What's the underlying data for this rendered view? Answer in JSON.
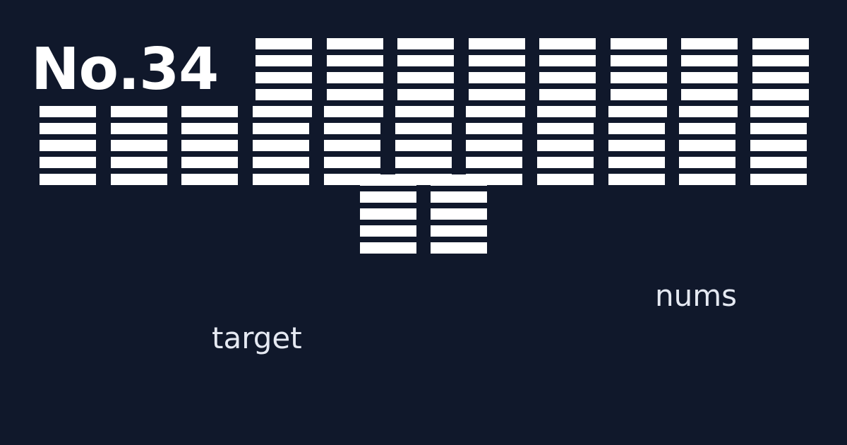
{
  "header": {
    "title": "No.34"
  },
  "labels": {
    "nums": "nums",
    "target": "target"
  },
  "colors": {
    "background": "#10182b",
    "glyph": "#ffffff",
    "label_text": "#e5e9f2"
  },
  "glyph_rows": {
    "top_count": 8,
    "middle_count": 11,
    "bottom_count": 2
  }
}
